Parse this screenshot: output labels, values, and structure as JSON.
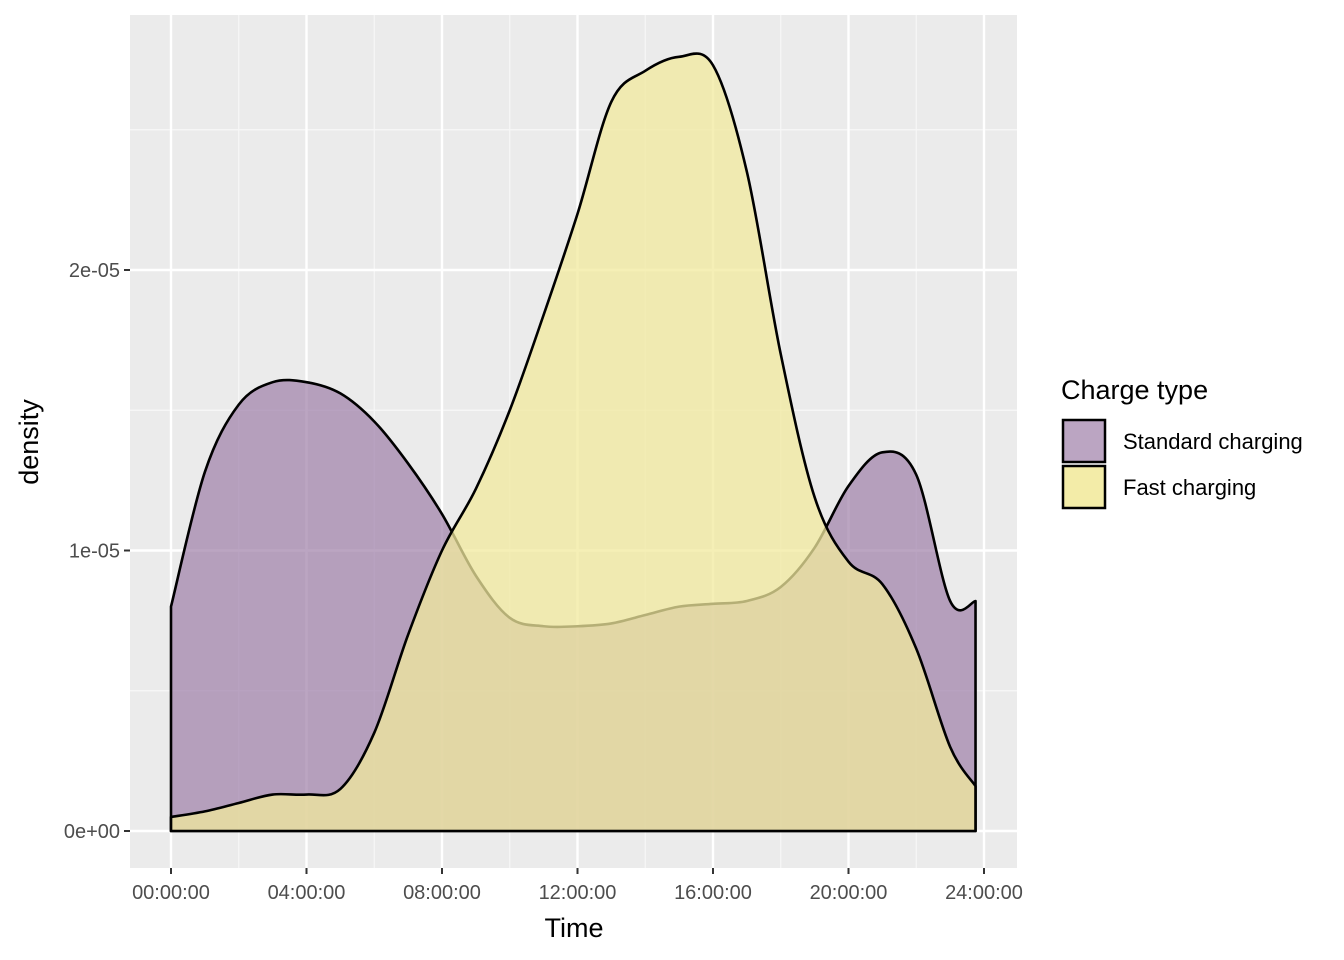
{
  "chart_data": {
    "type": "area",
    "subtype": "density",
    "xlabel": "Time",
    "ylabel": "density",
    "xlim": [
      "00:00:00",
      "24:00:00"
    ],
    "ylim": [
      0,
      2.8e-05
    ],
    "x_ticks": [
      "00:00:00",
      "04:00:00",
      "08:00:00",
      "12:00:00",
      "16:00:00",
      "20:00:00",
      "24:00:00"
    ],
    "y_ticks": [
      {
        "value": 0,
        "label": "0e+00"
      },
      {
        "value": 1e-05,
        "label": "1e-05"
      },
      {
        "value": 2e-05,
        "label": "2e-05"
      }
    ],
    "grid": true,
    "legend": {
      "title": "Charge type",
      "position": "right"
    },
    "x": [
      "00:00:00",
      "01:00:00",
      "02:00:00",
      "03:00:00",
      "04:00:00",
      "05:00:00",
      "06:00:00",
      "07:00:00",
      "08:00:00",
      "09:00:00",
      "10:00:00",
      "11:00:00",
      "12:00:00",
      "13:00:00",
      "14:00:00",
      "15:00:00",
      "16:00:00",
      "17:00:00",
      "18:00:00",
      "19:00:00",
      "20:00:00",
      "21:00:00",
      "22:00:00",
      "23:00:00",
      "23:45:00"
    ],
    "series": [
      {
        "name": "Standard charging",
        "color": "#9e7fa8",
        "values": [
          8e-06,
          1.28e-05,
          1.52e-05,
          1.6e-05,
          1.6e-05,
          1.56e-05,
          1.46e-05,
          1.31e-05,
          1.13e-05,
          9.1e-06,
          7.6e-06,
          7.3e-06,
          7.3e-06,
          7.4e-06,
          7.7e-06,
          8e-06,
          8.1e-06,
          8.2e-06,
          8.7e-06,
          1.01e-05,
          1.23e-05,
          1.35e-05,
          1.27e-05,
          8.2e-06,
          8.2e-06
        ]
      },
      {
        "name": "Fast charging",
        "color": "#f2ea9e",
        "values": [
          5e-07,
          7e-07,
          1e-06,
          1.3e-06,
          1.3e-06,
          1.5e-06,
          3.5e-06,
          7e-06,
          1e-05,
          1.22e-05,
          1.5e-05,
          1.84e-05,
          2.2e-05,
          2.6e-05,
          2.71e-05,
          2.76e-05,
          2.73e-05,
          2.35e-05,
          1.7e-05,
          1.19e-05,
          9.6e-06,
          8.8e-06,
          6.5e-06,
          3e-06,
          1.6e-06
        ]
      }
    ]
  }
}
